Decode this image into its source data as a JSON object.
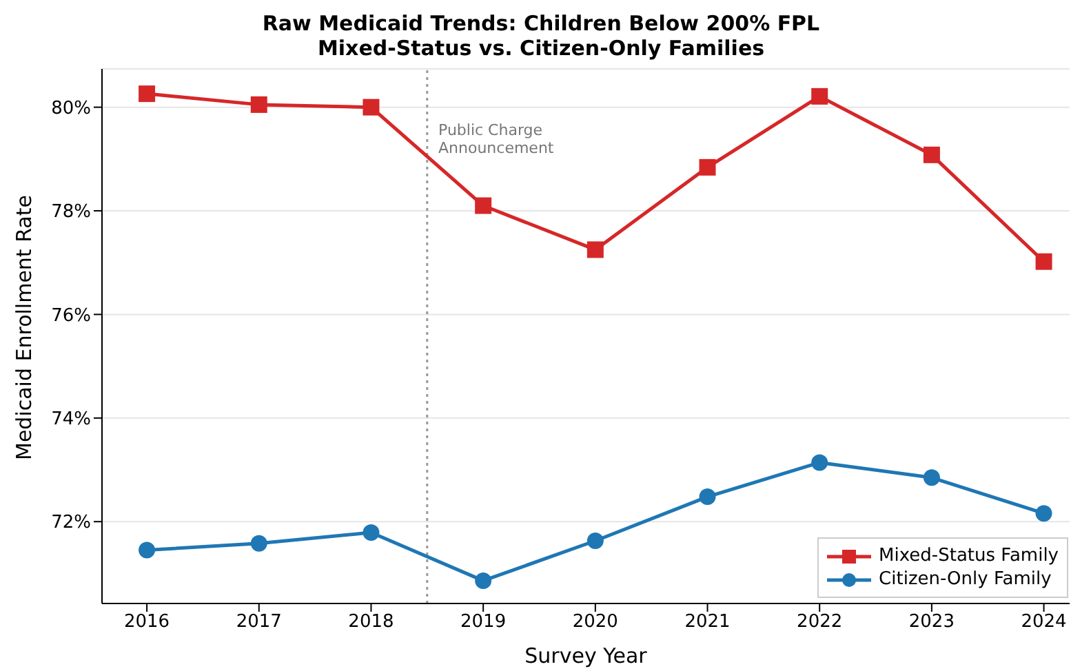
{
  "chart_data": {
    "type": "line",
    "title": "Raw Medicaid Trends: Children Below 200% FPL\nMixed-Status vs. Citizen-Only Families",
    "xlabel": "Survey Year",
    "ylabel": "Medicaid Enrollment Rate",
    "x": [
      2016,
      2017,
      2018,
      2019,
      2020,
      2021,
      2022,
      2023,
      2024
    ],
    "series": [
      {
        "name": "Mixed-Status Family",
        "color": "#d62728",
        "marker": "square",
        "values": [
          80.26,
          80.05,
          80.0,
          78.1,
          77.25,
          78.84,
          80.21,
          79.08,
          77.02
        ]
      },
      {
        "name": "Citizen-Only Family",
        "color": "#1f77b4",
        "marker": "circle",
        "values": [
          71.45,
          71.58,
          71.79,
          70.86,
          71.63,
          72.48,
          73.14,
          72.85,
          72.16
        ]
      }
    ],
    "xlim": [
      2015.6,
      2024.23
    ],
    "xticks": [
      2016,
      2017,
      2018,
      2019,
      2020,
      2021,
      2022,
      2023,
      2024
    ],
    "ylim": [
      70.42,
      80.74
    ],
    "yticks": [
      {
        "value": 72,
        "label": "72%"
      },
      {
        "value": 74,
        "label": "74%"
      },
      {
        "value": 76,
        "label": "76%"
      },
      {
        "value": 78,
        "label": "78%"
      },
      {
        "value": 80,
        "label": "80%"
      }
    ],
    "ref_lines": [
      {
        "axis": "x",
        "value": 2018.5,
        "color": "#999999",
        "line_style": "dotted"
      }
    ],
    "annotations": [
      "Public Charge\nAnnouncement"
    ],
    "grid": "y",
    "legend": "bottom right",
    "line_style": "solid"
  }
}
